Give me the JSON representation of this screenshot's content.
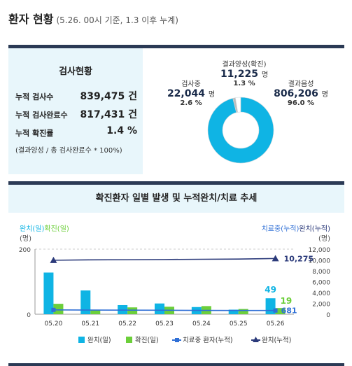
{
  "header": {
    "title": "환자 현황",
    "subtitle": "(5.26. 00시 기준, 1.3 이후 누계)"
  },
  "test_status": {
    "title": "검사현황",
    "rows": [
      {
        "label": "누적 검사수",
        "value": "839,475 건"
      },
      {
        "label": "누적 검사완료수",
        "value": "817,431 건"
      },
      {
        "label": "누적 확진률",
        "value": "1.4 %"
      }
    ],
    "note": "(결과양성 / 총 검사완료수 * 100%)"
  },
  "donut": {
    "positive": {
      "name": "결과양성(확진)",
      "count": "11,225",
      "unit": "명",
      "pct": "1.3 %",
      "share": 1.3,
      "color": "#bdbdbd"
    },
    "testing": {
      "name": "검사중",
      "count": "22,044",
      "unit": "명",
      "pct": "2.6 %",
      "share": 2.6,
      "color": "#ffffff"
    },
    "negative": {
      "name": "결과음성",
      "count": "806,206",
      "unit": "명",
      "pct": "96.0 %",
      "share": 96.0,
      "color": "#0fb4e4"
    }
  },
  "chart_title": "확진환자 일별 발생 및 누적완치/치료 추세",
  "chart_data": {
    "type": "bar",
    "categories": [
      "05.20",
      "05.21",
      "05.22",
      "05.23",
      "05.24",
      "05.25",
      "05.26"
    ],
    "left_axis_label": "완치(일)확진(일)",
    "left_axis_unit": "(명)",
    "right_axis_label": "치료중(누적)완치(누적)",
    "right_axis_unit": "(명)",
    "left_ylim": [
      0,
      200
    ],
    "left_ticks": [
      "0",
      "200"
    ],
    "right_ylim": [
      0,
      12000
    ],
    "right_ticks": [
      "0",
      "2,000",
      "4,000",
      "6,000",
      "8,000",
      "10,000",
      "12,000"
    ],
    "series": [
      {
        "name": "완치(일)",
        "type": "bar",
        "axis": "left",
        "color": "#0fb4e4",
        "values": [
          128,
          73,
          28,
          33,
          22,
          14,
          49
        ]
      },
      {
        "name": "확진(일)",
        "type": "bar",
        "axis": "left",
        "color": "#6ccf3a",
        "values": [
          32,
          12,
          21,
          23,
          25,
          16,
          19
        ]
      },
      {
        "name": "치료중 환자(누적)",
        "type": "line",
        "axis": "right",
        "color": "#2f6fd6",
        "values": [
          800,
          760,
          750,
          730,
          700,
          690,
          681
        ]
      },
      {
        "name": "완치(누적)",
        "type": "line",
        "axis": "right",
        "color": "#2b3a7a",
        "values": [
          9950,
          10020,
          10050,
          10080,
          10130,
          10170,
          10275
        ]
      }
    ],
    "annotations": {
      "bar_last_recovered": "49",
      "bar_last_confirmed": "19",
      "treating_last": "681",
      "recovered_cum_last": "10,275"
    },
    "legend": [
      "완치(일)",
      "확진(일)",
      "치료중 환자(누적)",
      "완치(누적)"
    ],
    "legend_position": "bottom"
  }
}
